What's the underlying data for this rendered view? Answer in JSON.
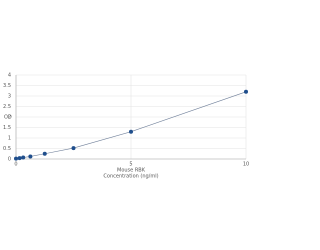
{
  "chart_data": {
    "type": "scatter-line",
    "y_label": "OD",
    "x_label": [
      "Mouse RBK",
      "Concentration (ng/ml)"
    ],
    "x": [
      0,
      0.156,
      0.312,
      0.625,
      1.25,
      2.5,
      5,
      10
    ],
    "values": [
      0.02,
      0.04,
      0.07,
      0.12,
      0.25,
      0.52,
      1.3,
      3.2
    ],
    "color": "#1f4e8c",
    "line_color": "#6f7f99",
    "xlim": [
      0,
      10
    ],
    "xticks": [
      0,
      5,
      10
    ],
    "ylim": [
      0,
      4
    ],
    "yticks": [
      0,
      0.5,
      1,
      1.5,
      2,
      2.5,
      3,
      3.5,
      4
    ],
    "grid": true
  }
}
